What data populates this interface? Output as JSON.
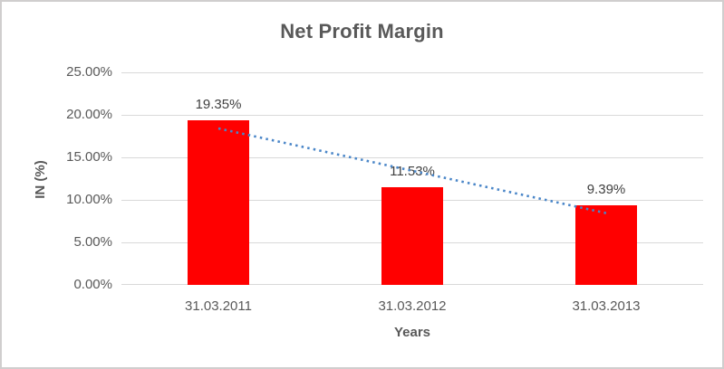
{
  "frame": {
    "background_color": "#ffffff",
    "border_color": "#d0cece"
  },
  "chart_data": {
    "type": "bar",
    "title": "Net Profit Margin",
    "categories": [
      "31.03.2011",
      "31.03.2012",
      "31.03.2013"
    ],
    "values": [
      19.35,
      11.53,
      9.39
    ],
    "data_labels": [
      "19.35%",
      "11.53%",
      "9.39%"
    ],
    "xlabel": "Years",
    "ylabel": "IN (%)",
    "ylim": [
      0,
      25
    ],
    "ytick_labels": [
      "25.00%",
      "20.00%",
      "15.00%",
      "10.00%",
      "5.00%",
      "0.00%"
    ],
    "grid": "horizontal",
    "legend_position": "none",
    "bar_color": "#ff0000",
    "trendline": {
      "type": "linear",
      "style": "dotted",
      "color": "#4a86c8"
    },
    "title_color": "#595959",
    "axis_text_color": "#595959",
    "data_label_color": "#404040",
    "gridline_color": "#d9d9d9"
  }
}
